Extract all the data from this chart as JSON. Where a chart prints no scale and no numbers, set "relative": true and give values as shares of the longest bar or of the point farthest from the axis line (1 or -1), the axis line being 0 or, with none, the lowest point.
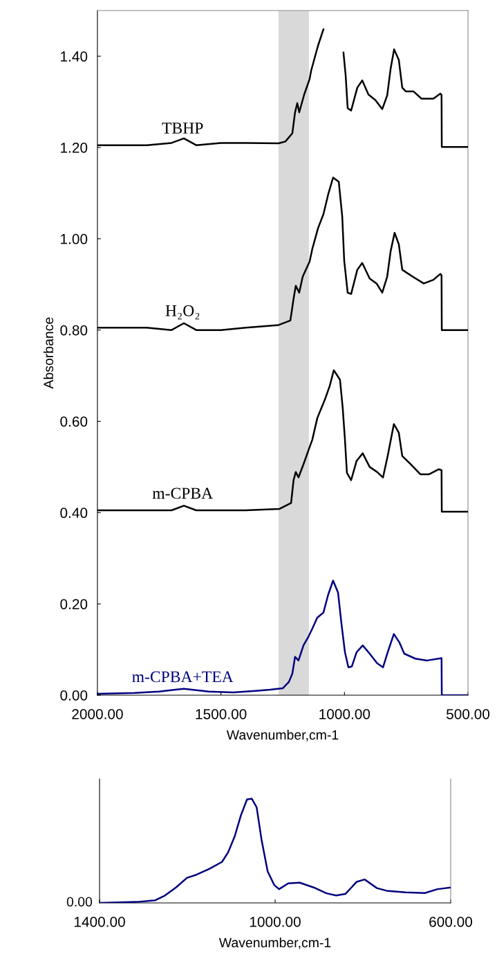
{
  "chart_data": [
    {
      "type": "line",
      "ylabel": "Absorbance",
      "xlabel": "Wavenumber,cm-1",
      "xlim": [
        2000,
        500
      ],
      "ylim": [
        0,
        1.5
      ],
      "xticks": [
        {
          "value": 2000,
          "label": "2000.00"
        },
        {
          "value": 1500,
          "label": "1500.00"
        },
        {
          "value": 1000,
          "label": "1000.00"
        },
        {
          "value": 500,
          "label": "500.00"
        }
      ],
      "yticks": [
        {
          "value": 0,
          "label": "0.00"
        },
        {
          "value": 0.2,
          "label": "0.20"
        },
        {
          "value": 0.4,
          "label": "0.40"
        },
        {
          "value": 0.6,
          "label": "0.60"
        },
        {
          "value": 0.8,
          "label": "0.80"
        },
        {
          "value": 1.0,
          "label": "1.00"
        },
        {
          "value": 1.2,
          "label": "1.20"
        },
        {
          "value": 1.4,
          "label": "1.40"
        }
      ],
      "bands": [
        {
          "axis": "x",
          "from": 1267,
          "to": 1144,
          "color": "#d9d9d9"
        }
      ],
      "grid": false,
      "legend": false,
      "marker": "none",
      "line_style": "solid",
      "series": [
        {
          "name": "TBHP",
          "color": "#000000",
          "x": [
            2000,
            1800,
            1700,
            1650,
            1600,
            1500,
            1400,
            1267,
            1239,
            1211,
            1200,
            1191,
            1183,
            1163,
            1141,
            1135,
            1107,
            1085,
            1065,
            1015,
            1004,
            995,
            987,
            973,
            948,
            928,
            903,
            875,
            847,
            827,
            813,
            799,
            780,
            766,
            752,
            721,
            688,
            640,
            612,
            607,
            606,
            500
          ],
          "values": [
            1.205,
            1.205,
            1.21,
            1.22,
            1.205,
            1.21,
            1.21,
            1.209,
            1.213,
            1.231,
            1.277,
            1.297,
            1.277,
            1.316,
            1.35,
            1.368,
            1.423,
            1.459,
            null,
            null,
            1.408,
            1.357,
            1.286,
            1.281,
            1.331,
            1.347,
            1.316,
            1.304,
            1.284,
            1.314,
            1.373,
            1.415,
            1.392,
            1.331,
            1.323,
            1.323,
            1.307,
            1.307,
            1.318,
            1.315,
            1.201,
            1.201
          ]
        },
        {
          "name": "H₂O₂",
          "color": "#000000",
          "x": [
            2000,
            1800,
            1700,
            1650,
            1600,
            1500,
            1400,
            1267,
            1219,
            1205,
            1197,
            1183,
            1169,
            1141,
            1130,
            1107,
            1085,
            1065,
            1046,
            1023,
            1009,
            1001,
            987,
            973,
            948,
            928,
            898,
            870,
            847,
            827,
            813,
            797,
            780,
            766,
            724,
            679,
            640,
            612,
            607,
            606,
            500
          ],
          "values": [
            0.805,
            0.805,
            0.8,
            0.815,
            0.8,
            0.8,
            0.805,
            0.811,
            0.821,
            0.872,
            0.897,
            0.882,
            0.917,
            0.95,
            0.978,
            1.023,
            1.054,
            1.099,
            1.134,
            1.125,
            1.049,
            0.952,
            0.882,
            0.879,
            0.932,
            0.947,
            0.913,
            0.902,
            0.882,
            0.917,
            0.973,
            1.013,
            0.988,
            0.932,
            0.917,
            0.902,
            0.91,
            0.923,
            0.92,
            0.8,
            0.8
          ]
        },
        {
          "name": "m-CPBA",
          "color": "#000000",
          "x": [
            2000,
            1800,
            1700,
            1650,
            1600,
            1500,
            1400,
            1264,
            1216,
            1206,
            1197,
            1186,
            1163,
            1144,
            1130,
            1110,
            1079,
            1060,
            1043,
            1018,
            1007,
            998,
            990,
            973,
            951,
            926,
            898,
            868,
            844,
            825,
            800,
            780,
            766,
            732,
            693,
            657,
            618,
            607,
            606,
            500
          ],
          "values": [
            0.405,
            0.405,
            0.405,
            0.415,
            0.405,
            0.405,
            0.405,
            0.408,
            0.421,
            0.471,
            0.489,
            0.477,
            0.51,
            0.539,
            0.56,
            0.607,
            0.648,
            0.677,
            0.712,
            0.691,
            0.629,
            0.56,
            0.487,
            0.471,
            0.513,
            0.53,
            0.5,
            0.489,
            0.477,
            0.524,
            0.594,
            0.575,
            0.524,
            0.506,
            0.484,
            0.484,
            0.495,
            0.493,
            0.402,
            0.402
          ]
        },
        {
          "name": "m-CPBA+TEA",
          "color": "#000080",
          "x": [
            2000,
            1850,
            1750,
            1650,
            1550,
            1450,
            1350,
            1300,
            1250,
            1225,
            1211,
            1200,
            1186,
            1166,
            1144,
            1130,
            1110,
            1085,
            1066,
            1046,
            1026,
            1012,
            998,
            984,
            970,
            951,
            926,
            898,
            868,
            844,
            825,
            800,
            777,
            758,
            713,
            665,
            607,
            606,
            500
          ],
          "values": [
            0.003,
            0.005,
            0.008,
            0.014,
            0.008,
            0.006,
            0.01,
            0.012,
            0.015,
            0.029,
            0.047,
            0.084,
            0.076,
            0.109,
            0.13,
            0.146,
            0.17,
            0.181,
            0.22,
            0.251,
            0.225,
            0.156,
            0.094,
            0.061,
            0.063,
            0.094,
            0.109,
            0.091,
            0.07,
            0.061,
            0.094,
            0.134,
            0.115,
            0.091,
            0.08,
            0.076,
            0.081,
            0,
            0
          ]
        }
      ]
    },
    {
      "type": "line",
      "xlabel": "Wavenumber,cm-1",
      "xlim": [
        1400,
        600
      ],
      "relative": true,
      "xticks": [
        {
          "value": 1400,
          "label": "1400.00"
        },
        {
          "value": 1000,
          "label": "1000.00"
        },
        {
          "value": 600,
          "label": "600.00"
        }
      ],
      "annotations": [
        "0.00"
      ],
      "grid": false,
      "legend": false,
      "marker": "none",
      "line_style": "solid",
      "series": [
        {
          "color": "#000080",
          "x": [
            1400,
            1316,
            1273,
            1251,
            1226,
            1201,
            1179,
            1150,
            1121,
            1107,
            1092,
            1078,
            1064,
            1053,
            1042,
            1031,
            1017,
            1002,
            991,
            970,
            944,
            912,
            883,
            861,
            840,
            814,
            796,
            768,
            746,
            703,
            659,
            630,
            600
          ],
          "values": [
            0,
            0.009,
            0.025,
            0.071,
            0.148,
            0.24,
            0.271,
            0.326,
            0.394,
            0.486,
            0.64,
            0.84,
            0.994,
            1.0,
            0.917,
            0.609,
            0.302,
            0.172,
            0.132,
            0.188,
            0.194,
            0.148,
            0.092,
            0.071,
            0.086,
            0.203,
            0.225,
            0.142,
            0.117,
            0.102,
            0.095,
            0.132,
            0.148
          ]
        }
      ]
    }
  ]
}
